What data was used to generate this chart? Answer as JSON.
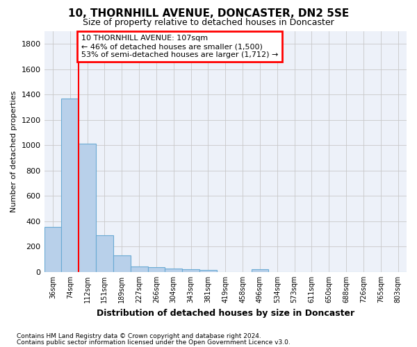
{
  "title": "10, THORNHILL AVENUE, DONCASTER, DN2 5SE",
  "subtitle": "Size of property relative to detached houses in Doncaster",
  "xlabel": "Distribution of detached houses by size in Doncaster",
  "ylabel": "Number of detached properties",
  "footnote1": "Contains HM Land Registry data © Crown copyright and database right 2024.",
  "footnote2": "Contains public sector information licensed under the Open Government Licence v3.0.",
  "bin_labels": [
    "36sqm",
    "74sqm",
    "112sqm",
    "151sqm",
    "189sqm",
    "227sqm",
    "266sqm",
    "304sqm",
    "343sqm",
    "381sqm",
    "419sqm",
    "458sqm",
    "496sqm",
    "534sqm",
    "573sqm",
    "611sqm",
    "650sqm",
    "688sqm",
    "726sqm",
    "765sqm",
    "803sqm"
  ],
  "bar_values": [
    355,
    1370,
    1015,
    290,
    130,
    45,
    35,
    28,
    22,
    17,
    0,
    0,
    20,
    0,
    0,
    0,
    0,
    0,
    0,
    0,
    0
  ],
  "bar_color": "#b8d0ea",
  "bar_edge_color": "#6aaad4",
  "grid_color": "#c8c8c8",
  "background_color": "#edf1f9",
  "red_line_bin_edge": 2,
  "annotation_line1": "10 THORNHILL AVENUE: 107sqm",
  "annotation_line2": "← 46% of detached houses are smaller (1,500)",
  "annotation_line3": "53% of semi-detached houses are larger (1,712) →",
  "ylim_max": 1900,
  "yticks": [
    0,
    200,
    400,
    600,
    800,
    1000,
    1200,
    1400,
    1600,
    1800
  ]
}
